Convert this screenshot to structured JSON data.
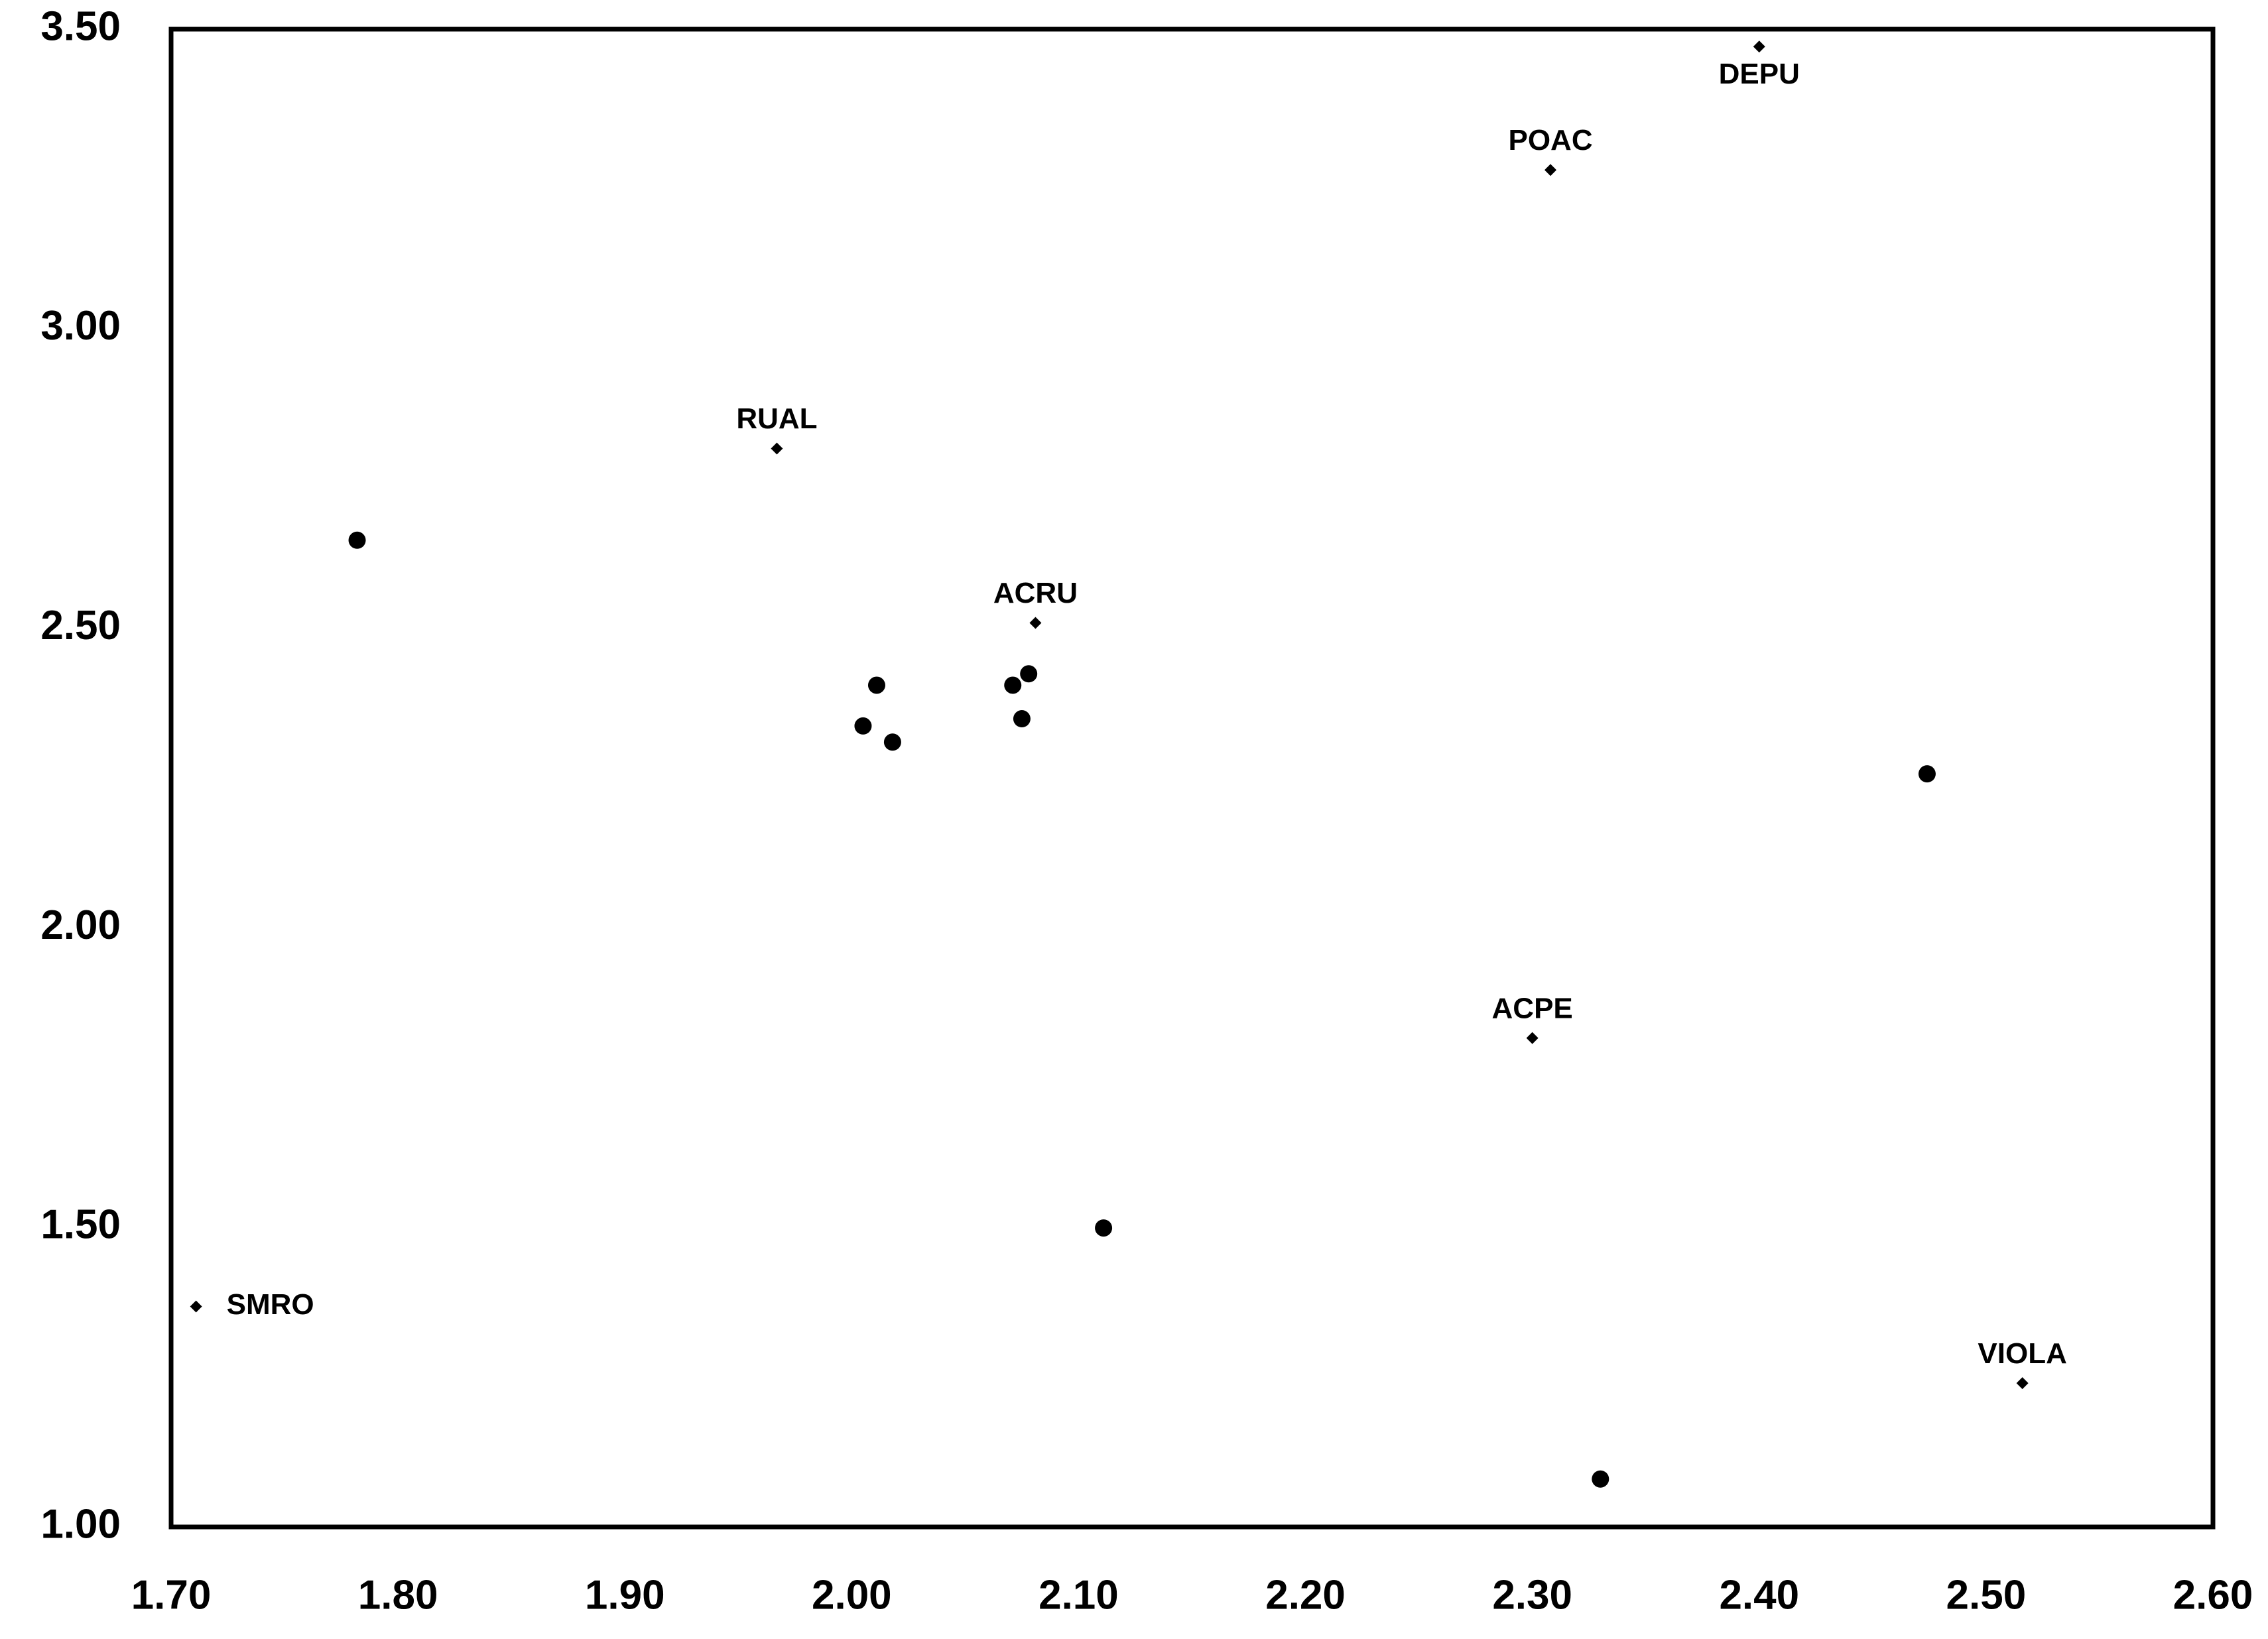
{
  "chart_data": {
    "type": "scatter",
    "xlim": [
      1.7,
      2.6
    ],
    "xticks": [
      {
        "value": 1.7,
        "label": "1.70"
      },
      {
        "value": 1.8,
        "label": "1.80"
      },
      {
        "value": 1.9,
        "label": "1.90"
      },
      {
        "value": 2.0,
        "label": "2.00"
      },
      {
        "value": 2.1,
        "label": "2.10"
      },
      {
        "value": 2.2,
        "label": "2.20"
      },
      {
        "value": 2.3,
        "label": "2.30"
      },
      {
        "value": 2.4,
        "label": "2.40"
      },
      {
        "value": 2.5,
        "label": "2.50"
      },
      {
        "value": 2.6,
        "label": "2.60"
      }
    ],
    "ylim": [
      1.0,
      3.5
    ],
    "yticks": [
      {
        "value": 1.0,
        "label": "1.00"
      },
      {
        "value": 1.5,
        "label": "1.50"
      },
      {
        "value": 2.0,
        "label": "2.00"
      },
      {
        "value": 2.5,
        "label": "2.50"
      },
      {
        "value": 3.0,
        "label": "3.00"
      },
      {
        "value": 3.5,
        "label": "3.50"
      }
    ],
    "grid": false,
    "series": [
      {
        "marker": "circle",
        "color": "#000000",
        "x": [
          1.782,
          2.011,
          2.005,
          2.018,
          2.071,
          2.078,
          2.075,
          2.474,
          2.111,
          2.33
        ],
        "values": [
          2.647,
          2.405,
          2.337,
          2.31,
          2.405,
          2.424,
          2.349,
          2.257,
          1.499,
          1.08
        ]
      },
      {
        "marker": "diamond",
        "color": "#000000",
        "x": [
          2.4,
          2.308,
          1.967,
          2.081,
          2.3,
          1.711,
          2.516
        ],
        "values": [
          3.471,
          3.265,
          2.8,
          2.509,
          1.816,
          1.368,
          1.24
        ],
        "labels": [
          "DEPU",
          "POAC",
          "RUAL",
          "ACRU",
          "ACPE",
          "SMRO",
          "VIOLA"
        ]
      }
    ]
  }
}
